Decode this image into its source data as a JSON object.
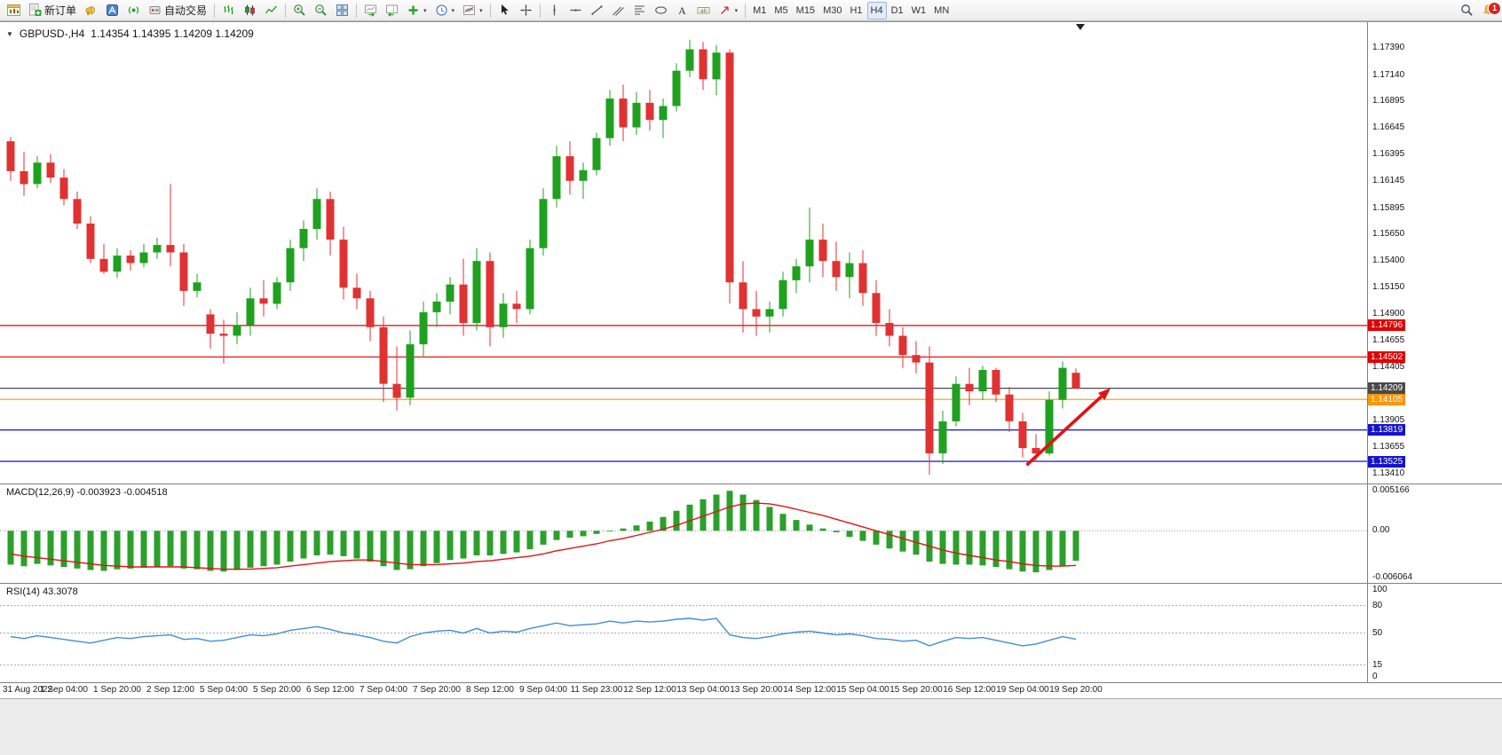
{
  "toolbar": {
    "items": [
      {
        "type": "button",
        "name": "new-chart-button",
        "icon": "new-chart-icon"
      },
      {
        "type": "button",
        "name": "new-order-button",
        "icon": "new-order-icon",
        "label": "新订单"
      },
      {
        "type": "button",
        "name": "terminal-button",
        "icon": "terminal-icon"
      },
      {
        "type": "button",
        "name": "metaeditor-button",
        "icon": "metaeditor-icon"
      },
      {
        "type": "button",
        "name": "signals-button",
        "icon": "signals-icon"
      },
      {
        "type": "button",
        "name": "autotrading-button",
        "icon": "autotrading-icon",
        "label": "自动交易"
      },
      {
        "type": "sep"
      },
      {
        "type": "button",
        "name": "bar-chart-button",
        "icon": "bar-chart-icon"
      },
      {
        "type": "button",
        "name": "candlestick-chart-button",
        "icon": "candle-chart-icon"
      },
      {
        "type": "button",
        "name": "line-chart-button",
        "icon": "line-chart-icon"
      },
      {
        "type": "sep"
      },
      {
        "type": "button",
        "name": "zoom-in-button",
        "icon": "zoom-in-icon"
      },
      {
        "type": "button",
        "name": "zoom-out-button",
        "icon": "zoom-out-icon"
      },
      {
        "type": "button",
        "name": "tile-windows-button",
        "icon": "tile-windows-icon"
      },
      {
        "type": "sep"
      },
      {
        "type": "button",
        "name": "auto-scroll-button",
        "icon": "auto-scroll-icon"
      },
      {
        "type": "button",
        "name": "chart-shift-button",
        "icon": "chart-shift-icon"
      },
      {
        "type": "button",
        "name": "indicators-button",
        "icon": "add-indicator-icon",
        "caret": true
      },
      {
        "type": "button",
        "name": "periods-button",
        "icon": "clock-icon",
        "caret": true
      },
      {
        "type": "button",
        "name": "templates-button",
        "icon": "template-icon",
        "caret": true
      },
      {
        "type": "sep"
      },
      {
        "type": "button",
        "name": "cursor-button",
        "icon": "cursor-icon"
      },
      {
        "type": "button",
        "name": "crosshair-button",
        "icon": "crosshair-icon"
      },
      {
        "type": "sep"
      },
      {
        "type": "button",
        "name": "vertical-line-button",
        "icon": "vertical-line-icon"
      },
      {
        "type": "button",
        "name": "horizontal-line-button",
        "icon": "horizontal-line-icon"
      },
      {
        "type": "button",
        "name": "trendline-button",
        "icon": "trendline-icon"
      },
      {
        "type": "button",
        "name": "channel-button",
        "icon": "channel-icon"
      },
      {
        "type": "button",
        "name": "fibonacci-button",
        "icon": "fibonacci-icon"
      },
      {
        "type": "button",
        "name": "shapes-button",
        "icon": "shapes-icon"
      },
      {
        "type": "button",
        "name": "text-button",
        "icon": "text-icon"
      },
      {
        "type": "button",
        "name": "text-label-button",
        "icon": "label-icon"
      },
      {
        "type": "button",
        "name": "arrow-tools-button",
        "icon": "arrow-tools-icon",
        "caret": true
      },
      {
        "type": "sep"
      },
      {
        "type": "tf",
        "name": "timeframe-m1",
        "label": "M1"
      },
      {
        "type": "tf",
        "name": "timeframe-m5",
        "label": "M5"
      },
      {
        "type": "tf",
        "name": "timeframe-m15",
        "label": "M15"
      },
      {
        "type": "tf",
        "name": "timeframe-m30",
        "label": "M30"
      },
      {
        "type": "tf",
        "name": "timeframe-h1",
        "label": "H1"
      },
      {
        "type": "tf",
        "name": "timeframe-h4",
        "label": "H4",
        "active": true
      },
      {
        "type": "tf",
        "name": "timeframe-d1",
        "label": "D1"
      },
      {
        "type": "tf",
        "name": "timeframe-w1",
        "label": "W1"
      },
      {
        "type": "tf",
        "name": "timeframe-mn",
        "label": "MN"
      },
      {
        "type": "spacer"
      },
      {
        "type": "button",
        "name": "search-button",
        "icon": "magnifier-icon"
      },
      {
        "type": "button",
        "name": "notifications-button",
        "icon": "bell-icon",
        "badge": "1"
      }
    ]
  },
  "chart_data": [
    {
      "type": "candlestick",
      "title": "GBPUSD-,H4",
      "ohlc_display": "1.14354 1.14395 1.14209 1.14209",
      "bars_per_label": 4,
      "x_labels": [
        "31 Aug 2022",
        "1 Sep 04:00",
        "1 Sep 20:00",
        "2 Sep 12:00",
        "5 Sep 04:00",
        "5 Sep 20:00",
        "6 Sep 12:00",
        "7 Sep 04:00",
        "7 Sep 20:00",
        "8 Sep 12:00",
        "9 Sep 04:00",
        "11 Sep 23:00",
        "12 Sep 12:00",
        "13 Sep 04:00",
        "13 Sep 20:00",
        "14 Sep 12:00",
        "15 Sep 04:00",
        "15 Sep 20:00",
        "16 Sep 12:00",
        "19 Sep 04:00",
        "19 Sep 20:00"
      ],
      "y_axis_ticks": [
        "1.17390",
        "1.17140",
        "1.16895",
        "1.16645",
        "1.16395",
        "1.16145",
        "1.15895",
        "1.15650",
        "1.15400",
        "1.15150",
        "1.14900",
        "1.14655",
        "1.14405",
        "1.14155",
        "1.13905",
        "1.13655",
        "1.13410"
      ],
      "price_range": {
        "top": 1.1746,
        "bottom": 1.1338
      },
      "colors": {
        "up": "#1FA11F",
        "down": "#E03232",
        "background": "#FFFFFF"
      },
      "lines": [
        {
          "price": 1.14796,
          "color": "#E00000",
          "label": "1.14796"
        },
        {
          "price": 1.14502,
          "color": "#E00000",
          "label": "1.14502"
        },
        {
          "price": 1.14209,
          "color": "#4A4A4A",
          "label": "1.14209"
        },
        {
          "price": 1.14105,
          "color": "#FF9500",
          "label": "1.14105"
        },
        {
          "price": 1.13819,
          "color": "#1414CC",
          "label": "1.13819"
        },
        {
          "price": 1.13525,
          "color": "#1414CC",
          "label": "1.13525"
        }
      ],
      "arrow": {
        "color": "#E01414",
        "from": {
          "bar": 76.3,
          "price": 1.1349
        },
        "to": {
          "bar": 82.6,
          "price": 1.1421
        }
      },
      "shift_marker": true,
      "candles": [
        [
          1.1652,
          1.1656,
          1.1615,
          1.1624
        ],
        [
          1.1624,
          1.1642,
          1.1601,
          1.1612
        ],
        [
          1.1612,
          1.1638,
          1.1608,
          1.1632
        ],
        [
          1.1632,
          1.164,
          1.1613,
          1.1618
        ],
        [
          1.1618,
          1.1626,
          1.1592,
          1.1598
        ],
        [
          1.1598,
          1.1605,
          1.157,
          1.1575
        ],
        [
          1.1575,
          1.1582,
          1.1538,
          1.1542
        ],
        [
          1.1542,
          1.1556,
          1.1528,
          1.153
        ],
        [
          1.153,
          1.1552,
          1.1524,
          1.1545
        ],
        [
          1.1545,
          1.155,
          1.1531,
          1.1538
        ],
        [
          1.1538,
          1.1556,
          1.1534,
          1.1548
        ],
        [
          1.1548,
          1.1562,
          1.1542,
          1.1555
        ],
        [
          1.1555,
          1.1612,
          1.1535,
          1.1548
        ],
        [
          1.1548,
          1.1556,
          1.1498,
          1.1512
        ],
        [
          1.1512,
          1.1528,
          1.1506,
          1.152
        ],
        [
          1.149,
          1.1495,
          1.1458,
          1.1472
        ],
        [
          1.1472,
          1.1485,
          1.1444,
          1.147
        ],
        [
          1.147,
          1.1492,
          1.1462,
          1.148
        ],
        [
          1.148,
          1.1515,
          1.147,
          1.1505
        ],
        [
          1.1505,
          1.1522,
          1.1488,
          1.15
        ],
        [
          1.15,
          1.1525,
          1.1495,
          1.152
        ],
        [
          1.152,
          1.156,
          1.1512,
          1.1552
        ],
        [
          1.1552,
          1.1578,
          1.154,
          1.157
        ],
        [
          1.157,
          1.1608,
          1.156,
          1.1598
        ],
        [
          1.1598,
          1.1605,
          1.1545,
          1.156
        ],
        [
          1.156,
          1.1572,
          1.1504,
          1.1515
        ],
        [
          1.1515,
          1.1528,
          1.1495,
          1.1505
        ],
        [
          1.1505,
          1.1512,
          1.1465,
          1.1478
        ],
        [
          1.1478,
          1.1488,
          1.1408,
          1.1425
        ],
        [
          1.1425,
          1.146,
          1.14,
          1.1412
        ],
        [
          1.1412,
          1.1475,
          1.1405,
          1.1462
        ],
        [
          1.1462,
          1.1502,
          1.145,
          1.1492
        ],
        [
          1.1492,
          1.151,
          1.1478,
          1.1502
        ],
        [
          1.1502,
          1.1525,
          1.149,
          1.1518
        ],
        [
          1.1518,
          1.1542,
          1.147,
          1.1482
        ],
        [
          1.1482,
          1.1552,
          1.1475,
          1.154
        ],
        [
          1.154,
          1.1548,
          1.146,
          1.1478
        ],
        [
          1.1478,
          1.151,
          1.1468,
          1.15
        ],
        [
          1.15,
          1.1512,
          1.1482,
          1.1495
        ],
        [
          1.1495,
          1.156,
          1.149,
          1.1552
        ],
        [
          1.1552,
          1.1608,
          1.1545,
          1.1598
        ],
        [
          1.1598,
          1.1648,
          1.159,
          1.1638
        ],
        [
          1.1638,
          1.1652,
          1.1602,
          1.1615
        ],
        [
          1.1615,
          1.1632,
          1.1598,
          1.1625
        ],
        [
          1.1625,
          1.166,
          1.162,
          1.1655
        ],
        [
          1.1655,
          1.17,
          1.1648,
          1.1692
        ],
        [
          1.1692,
          1.1705,
          1.1652,
          1.1665
        ],
        [
          1.1665,
          1.1698,
          1.1658,
          1.1688
        ],
        [
          1.1688,
          1.17,
          1.1662,
          1.1672
        ],
        [
          1.1672,
          1.1692,
          1.1655,
          1.1685
        ],
        [
          1.1685,
          1.1725,
          1.168,
          1.1718
        ],
        [
          1.1718,
          1.1747,
          1.1712,
          1.1738
        ],
        [
          1.1738,
          1.1745,
          1.17,
          1.171
        ],
        [
          1.171,
          1.1742,
          1.1695,
          1.1735
        ],
        [
          1.1735,
          1.1738,
          1.15,
          1.152
        ],
        [
          1.152,
          1.154,
          1.1473,
          1.1495
        ],
        [
          1.1495,
          1.1512,
          1.147,
          1.1488
        ],
        [
          1.1488,
          1.1502,
          1.1473,
          1.1495
        ],
        [
          1.1495,
          1.153,
          1.1488,
          1.1522
        ],
        [
          1.1522,
          1.1542,
          1.151,
          1.1535
        ],
        [
          1.1535,
          1.159,
          1.152,
          1.156
        ],
        [
          1.156,
          1.1575,
          1.1525,
          1.154
        ],
        [
          1.154,
          1.1558,
          1.1512,
          1.1525
        ],
        [
          1.1525,
          1.1548,
          1.1505,
          1.1538
        ],
        [
          1.1538,
          1.155,
          1.1498,
          1.151
        ],
        [
          1.151,
          1.1522,
          1.147,
          1.1482
        ],
        [
          1.1482,
          1.1495,
          1.146,
          1.147
        ],
        [
          1.147,
          1.1478,
          1.144,
          1.1452
        ],
        [
          1.1452,
          1.1465,
          1.1435,
          1.1445
        ],
        [
          1.1445,
          1.146,
          1.134,
          1.136
        ],
        [
          1.136,
          1.14,
          1.135,
          1.139
        ],
        [
          1.139,
          1.1432,
          1.1385,
          1.1425
        ],
        [
          1.1425,
          1.144,
          1.1405,
          1.1418
        ],
        [
          1.1418,
          1.1442,
          1.141,
          1.1438
        ],
        [
          1.1438,
          1.144,
          1.1408,
          1.1415
        ],
        [
          1.1415,
          1.1422,
          1.138,
          1.139
        ],
        [
          1.139,
          1.1398,
          1.1356,
          1.1365
        ],
        [
          1.1365,
          1.1378,
          1.1352,
          1.136
        ],
        [
          1.136,
          1.1418,
          1.1358,
          1.141
        ],
        [
          1.141,
          1.1446,
          1.1402,
          1.144
        ],
        [
          1.14354,
          1.14395,
          1.14209,
          1.14209
        ]
      ]
    },
    {
      "type": "bar",
      "title": "MACD(12,26,9) -0.003923 -0.004518",
      "name": "MACD(12,26,9)",
      "current_values": [
        "-0.003923",
        "-0.004518"
      ],
      "y_ticks": [
        "0.005166",
        "0.00",
        "-0.006064"
      ],
      "range": {
        "top": 0.0058,
        "bottom": -0.0062
      },
      "colors": {
        "histogram": "#2BA02B",
        "signal": "#E01414"
      },
      "values": [
        -0.0044,
        -0.0046,
        -0.0043,
        -0.0045,
        -0.0047,
        -0.0049,
        -0.0051,
        -0.0052,
        -0.005,
        -0.0049,
        -0.0048,
        -0.0047,
        -0.0046,
        -0.0049,
        -0.005,
        -0.0052,
        -0.0053,
        -0.0051,
        -0.0048,
        -0.0046,
        -0.0044,
        -0.004,
        -0.0036,
        -0.0032,
        -0.0031,
        -0.0033,
        -0.0036,
        -0.004,
        -0.0046,
        -0.0051,
        -0.005,
        -0.0046,
        -0.0042,
        -0.0038,
        -0.0036,
        -0.0032,
        -0.0032,
        -0.003,
        -0.0028,
        -0.0024,
        -0.0018,
        -0.0012,
        -0.0009,
        -0.0007,
        -0.0004,
        0.0,
        0.0003,
        0.0007,
        0.0012,
        0.0018,
        0.0026,
        0.0034,
        0.0041,
        0.0047,
        0.0052,
        0.0047,
        0.004,
        0.0031,
        0.0022,
        0.0014,
        0.0008,
        0.0003,
        -0.0002,
        -0.0008,
        -0.0013,
        -0.0018,
        -0.0023,
        -0.0027,
        -0.0031,
        -0.004,
        -0.0043,
        -0.0044,
        -0.0044,
        -0.0045,
        -0.0047,
        -0.005,
        -0.0053,
        -0.0054,
        -0.0051,
        -0.0046,
        -0.0039
      ],
      "signal": [
        -0.003,
        -0.0033,
        -0.0035,
        -0.0037,
        -0.0039,
        -0.0041,
        -0.0043,
        -0.0045,
        -0.0046,
        -0.0047,
        -0.0047,
        -0.0047,
        -0.0047,
        -0.0047,
        -0.0048,
        -0.0049,
        -0.005,
        -0.005,
        -0.005,
        -0.0049,
        -0.0048,
        -0.0046,
        -0.0044,
        -0.0042,
        -0.004,
        -0.0039,
        -0.0038,
        -0.0038,
        -0.004,
        -0.0042,
        -0.0044,
        -0.0044,
        -0.0044,
        -0.0043,
        -0.0042,
        -0.004,
        -0.0039,
        -0.0037,
        -0.0035,
        -0.0033,
        -0.003,
        -0.0026,
        -0.0023,
        -0.002,
        -0.0017,
        -0.0013,
        -0.001,
        -0.0006,
        -0.0002,
        0.0002,
        0.0007,
        0.0013,
        0.0019,
        0.0025,
        0.0031,
        0.0035,
        0.0036,
        0.0035,
        0.0032,
        0.0028,
        0.0024,
        0.002,
        0.0015,
        0.001,
        0.0005,
        0.0,
        -0.0005,
        -0.001,
        -0.0015,
        -0.002,
        -0.0025,
        -0.0029,
        -0.0032,
        -0.0035,
        -0.0038,
        -0.004,
        -0.0043,
        -0.0045,
        -0.0046,
        -0.0046,
        -0.0045
      ]
    },
    {
      "type": "line",
      "title": "RSI(14) 43.3078",
      "name": "RSI(14)",
      "current_value": "43.3078",
      "levels": [
        100,
        80,
        50,
        15,
        0
      ],
      "range": {
        "top": 100,
        "bottom": 0
      },
      "color": "#3F8FD2",
      "values": [
        46,
        44,
        47,
        45,
        43,
        41,
        39,
        42,
        45,
        44,
        46,
        47,
        48,
        43,
        44,
        41,
        42,
        45,
        48,
        47,
        49,
        53,
        55,
        57,
        54,
        50,
        48,
        45,
        41,
        39,
        46,
        50,
        52,
        53,
        50,
        55,
        50,
        52,
        51,
        55,
        58,
        61,
        58,
        59,
        60,
        63,
        61,
        63,
        62,
        63,
        65,
        66,
        64,
        66,
        48,
        45,
        44,
        46,
        49,
        51,
        52,
        50,
        48,
        49,
        47,
        44,
        43,
        41,
        42,
        36,
        41,
        45,
        44,
        45,
        42,
        39,
        36,
        38,
        42,
        46,
        43.3078
      ]
    }
  ]
}
